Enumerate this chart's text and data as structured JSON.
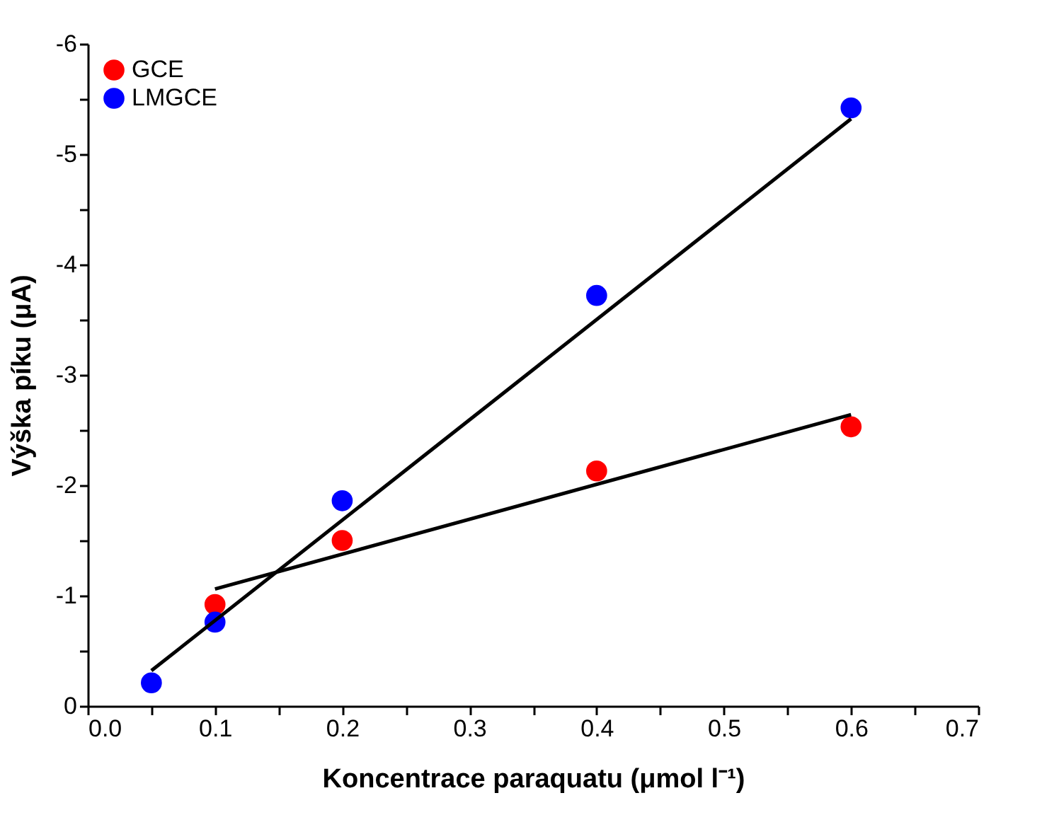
{
  "chart_data": {
    "type": "scatter",
    "xlabel": "Koncentrace paraquatu (μmol l⁻¹)",
    "ylabel": "Výška píku (μA)",
    "xlim": [
      0,
      0.7
    ],
    "ylim": [
      0,
      -6
    ],
    "xticks": [
      {
        "value": 0,
        "label": "0.0"
      },
      {
        "value": 0.05,
        "label": null
      },
      {
        "value": 0.1,
        "label": "0.1"
      },
      {
        "value": 0.15,
        "label": null
      },
      {
        "value": 0.2,
        "label": "0.2"
      },
      {
        "value": 0.25,
        "label": null
      },
      {
        "value": 0.3,
        "label": "0.3"
      },
      {
        "value": 0.35,
        "label": null
      },
      {
        "value": 0.4,
        "label": "0.4"
      },
      {
        "value": 0.45,
        "label": null
      },
      {
        "value": 0.5,
        "label": "0.5"
      },
      {
        "value": 0.55,
        "label": null
      },
      {
        "value": 0.6,
        "label": "0.6"
      },
      {
        "value": 0.65,
        "label": null
      },
      {
        "value": 0.7,
        "label": "0.7"
      }
    ],
    "yticks": [
      0,
      {
        "value": -0.5,
        "label": null
      },
      -1,
      {
        "value": -1.5,
        "label": null
      },
      -2,
      {
        "value": -2.5,
        "label": null
      },
      -3,
      {
        "value": -3.5,
        "label": null
      },
      -4,
      {
        "value": -4.5,
        "label": null
      },
      -5,
      {
        "value": -5.5,
        "label": null
      },
      -6
    ],
    "legend": "top left",
    "grid": false,
    "series": [
      {
        "name": "GCE",
        "color": "#ff0000",
        "marker": "circle",
        "x": [
          0.1,
          0.2,
          0.4,
          0.6
        ],
        "values": [
          -0.92,
          -1.5,
          -2.13,
          -2.53
        ]
      },
      {
        "name": "LMGCE",
        "color": "#0000ff",
        "marker": "circle",
        "x": [
          0.05,
          0.1,
          0.2,
          0.4,
          0.6
        ],
        "values": [
          -0.21,
          -0.76,
          -1.86,
          -3.72,
          -5.42
        ]
      },
      {
        "type": "line",
        "color": "#000000",
        "x": [
          0.1,
          0.6
        ],
        "values": [
          -1.06,
          -2.64
        ]
      },
      {
        "type": "line",
        "color": "#000000",
        "x": [
          0.05,
          0.6
        ],
        "values": [
          -0.32,
          -5.32
        ]
      }
    ]
  }
}
